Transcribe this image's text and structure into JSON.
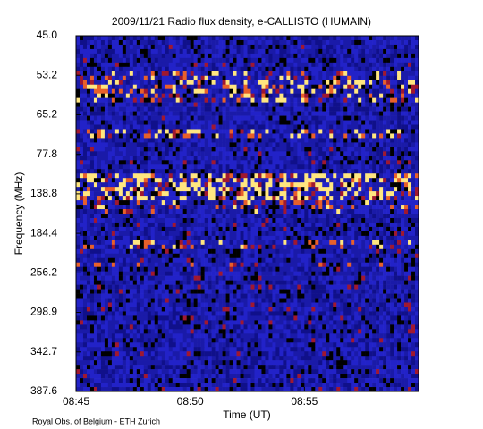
{
  "chart_data": {
    "type": "spectrogram",
    "title": "2009/11/21  Radio flux density, e-CALLISTO (HUMAIN)",
    "xlabel": "Time (UT)",
    "ylabel": "Frequency (MHz)",
    "footer": "Royal Obs. of Belgium - ETH Zurich",
    "xlim": [
      "08:45",
      "09:00"
    ],
    "xticks": [
      "08:45",
      "08:50",
      "08:55"
    ],
    "yticks": [
      {
        "value": 45.0,
        "label": "45.0"
      },
      {
        "value": 53.2,
        "label": "53.2"
      },
      {
        "value": 65.2,
        "label": "65.2"
      },
      {
        "value": 77.8,
        "label": "77.8"
      },
      {
        "value": 138.8,
        "label": "138.8"
      },
      {
        "value": 184.4,
        "label": "184.4"
      },
      {
        "value": 256.2,
        "label": "256.2"
      },
      {
        "value": 298.9,
        "label": "298.9"
      },
      {
        "value": 342.7,
        "label": "342.7"
      },
      {
        "value": 387.6,
        "label": "387.6"
      }
    ]
  }
}
